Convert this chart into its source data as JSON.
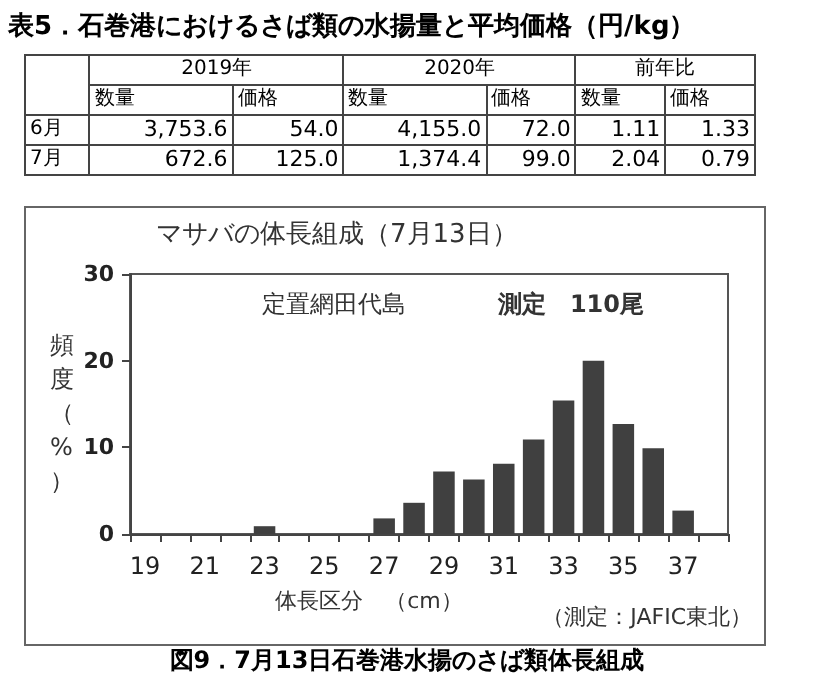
{
  "chart_data": [
    {
      "type": "other",
      "title": "表5．石巻港におけるさば類の水揚量と平均価格（円/kg）",
      "annotations": [
        "2019年",
        "2020年",
        "前年比"
      ],
      "categories": [
        "数量",
        "価格",
        "数量",
        "価格",
        "数量",
        "価格"
      ],
      "y_categories": [
        "6月",
        "7月"
      ],
      "cell_labels": [
        [
          "3,753.6",
          "54.0",
          "4,155.0",
          "72.0",
          "1.11",
          "1.33"
        ],
        [
          "672.6",
          "125.0",
          "1,374.4",
          "99.0",
          "2.04",
          "0.79"
        ]
      ]
    },
    {
      "type": "bar",
      "title": "マサバの体長組成（7月13日）",
      "xlabel": "体長区分　（cm）",
      "ylabel": "頻度（%）",
      "categories": [
        "19",
        null,
        "21",
        null,
        "23",
        null,
        "25",
        null,
        "27",
        null,
        "29",
        null,
        "31",
        null,
        "33",
        null,
        "35",
        null,
        "37",
        null
      ],
      "values": [
        0,
        0,
        0,
        0,
        0.9,
        0,
        0,
        0,
        1.8,
        3.6,
        7.2,
        6.3,
        8.1,
        10.9,
        15.4,
        20.0,
        12.7,
        9.9,
        2.7,
        0
      ],
      "color": "#404040",
      "ylim": [
        0,
        30
      ],
      "yticks": [
        0,
        10,
        20,
        30
      ],
      "grid": false,
      "annotations": [
        "定置網田代島",
        "測定　110尾",
        "（測定：JAFIC東北）",
        "図9．7月13日石巻港水揚のさば類体長組成"
      ]
    }
  ]
}
